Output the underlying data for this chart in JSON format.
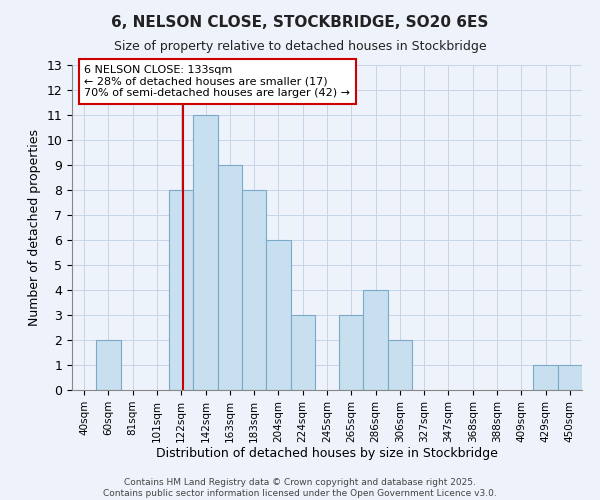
{
  "title": "6, NELSON CLOSE, STOCKBRIDGE, SO20 6ES",
  "subtitle": "Size of property relative to detached houses in Stockbridge",
  "xlabel": "Distribution of detached houses by size in Stockbridge",
  "ylabel": "Number of detached properties",
  "bar_color": "#c8dff0",
  "bar_edge_color": "#7aaac8",
  "background_color": "#eef2fa",
  "grid_color": "#c5d5e8",
  "bin_labels": [
    "40sqm",
    "60sqm",
    "81sqm",
    "101sqm",
    "122sqm",
    "142sqm",
    "163sqm",
    "183sqm",
    "204sqm",
    "224sqm",
    "245sqm",
    "265sqm",
    "286sqm",
    "306sqm",
    "327sqm",
    "347sqm",
    "368sqm",
    "388sqm",
    "409sqm",
    "429sqm",
    "450sqm"
  ],
  "counts": [
    0,
    2,
    0,
    0,
    8,
    11,
    9,
    8,
    6,
    3,
    0,
    3,
    4,
    2,
    0,
    0,
    0,
    0,
    0,
    1,
    1
  ],
  "vline_color": "#cc0000",
  "annotation_title": "6 NELSON CLOSE: 133sqm",
  "annotation_line1": "← 28% of detached houses are smaller (17)",
  "annotation_line2": "70% of semi-detached houses are larger (42) →",
  "annotation_box_color": "#ffffff",
  "annotation_box_edge": "#cc0000",
  "ylim": [
    0,
    13
  ],
  "yticks": [
    0,
    1,
    2,
    3,
    4,
    5,
    6,
    7,
    8,
    9,
    10,
    11,
    12,
    13
  ],
  "footer1": "Contains HM Land Registry data © Crown copyright and database right 2025.",
  "footer2": "Contains public sector information licensed under the Open Government Licence v3.0."
}
